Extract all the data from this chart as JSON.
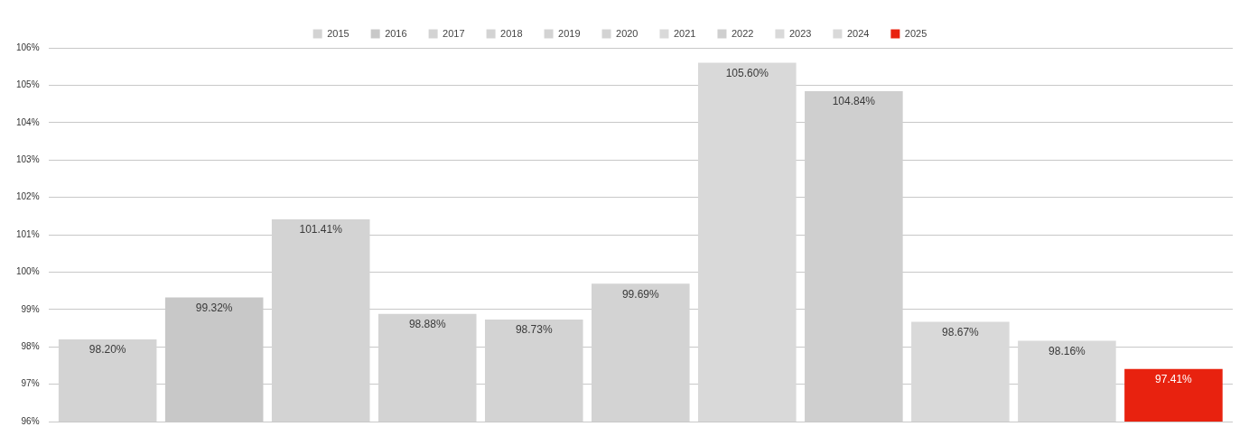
{
  "chart_data": {
    "type": "bar",
    "categories": [
      null
    ],
    "series": [
      {
        "name": "2015",
        "color": "#d3d3d3",
        "values": [
          98.2
        ],
        "value_labels": [
          "98.20%"
        ]
      },
      {
        "name": "2016",
        "color": "#c8c8c8",
        "values": [
          99.32
        ],
        "value_labels": [
          "99.32%"
        ]
      },
      {
        "name": "2017",
        "color": "#d3d3d3",
        "values": [
          101.41
        ],
        "value_labels": [
          "101.41%"
        ]
      },
      {
        "name": "2018",
        "color": "#d3d3d3",
        "values": [
          98.88
        ],
        "value_labels": [
          "98.88%"
        ]
      },
      {
        "name": "2019",
        "color": "#d3d3d3",
        "values": [
          98.73
        ],
        "value_labels": [
          "98.73%"
        ]
      },
      {
        "name": "2020",
        "color": "#d3d3d3",
        "values": [
          99.69
        ],
        "value_labels": [
          "99.69%"
        ]
      },
      {
        "name": "2021",
        "color": "#d9d9d9",
        "values": [
          105.6
        ],
        "value_labels": [
          "105.60%"
        ]
      },
      {
        "name": "2022",
        "color": "#cfcfcf",
        "values": [
          104.84
        ],
        "value_labels": [
          "104.84%"
        ]
      },
      {
        "name": "2023",
        "color": "#d9d9d9",
        "values": [
          98.67
        ],
        "value_labels": [
          "98.67%"
        ]
      },
      {
        "name": "2024",
        "color": "#d9d9d9",
        "values": [
          98.16
        ],
        "value_labels": [
          "98.16%"
        ]
      },
      {
        "name": "2025",
        "color": "#e8220f",
        "values": [
          97.41
        ],
        "value_labels": [
          "97.41%"
        ]
      }
    ],
    "ylim": [
      96,
      106
    ],
    "yticks": [
      {
        "value": 96,
        "label": "96%"
      },
      {
        "value": 97,
        "label": "97%"
      },
      {
        "value": 98,
        "label": "98%"
      },
      {
        "value": 99,
        "label": "99%"
      },
      {
        "value": 100,
        "label": "100%"
      },
      {
        "value": 101,
        "label": "101%"
      },
      {
        "value": 102,
        "label": "102%"
      },
      {
        "value": 103,
        "label": "103%"
      },
      {
        "value": 104,
        "label": "104%"
      },
      {
        "value": 105,
        "label": "105%"
      },
      {
        "value": 106,
        "label": "106%"
      }
    ],
    "tick_labels": "y",
    "grid": "y",
    "legend": "top"
  }
}
